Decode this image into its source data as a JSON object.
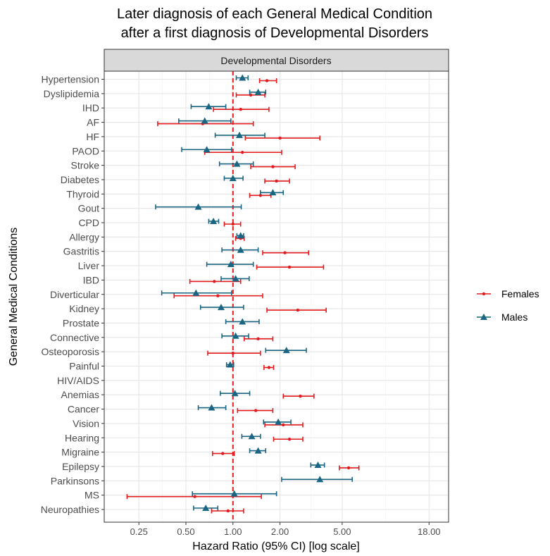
{
  "chart_data": {
    "type": "forest",
    "title": [
      "Later diagnosis of each General Medical Condition",
      "after a first diagnosis of Developmental Disorders"
    ],
    "panel_title": "Developmental Disorders",
    "xlabel": "Hazard Ratio (95% CI) [log scale]",
    "ylabel": "General Medical Conditions",
    "x_scale": "log",
    "xlim": [
      0.15,
      24
    ],
    "x_ticks": [
      0.25,
      0.5,
      1,
      2,
      5,
      18
    ],
    "x_tick_labels": [
      "0.25",
      "0.50",
      "1.00",
      "2.00",
      "5.00",
      "18.00"
    ],
    "reference_line": 1,
    "categories": [
      "Hypertension",
      "Dyslipidemia",
      "IHD",
      "AF",
      "HF",
      "PAOD",
      "Stroke",
      "Diabetes",
      "Thyroid",
      "Gout",
      "CPD",
      "Allergy",
      "Gastritis",
      "Liver",
      "IBD",
      "Diverticular",
      "Kidney",
      "Prostate",
      "Connective",
      "Osteoporosis",
      "Painful",
      "HIV/AIDS",
      "Anemias",
      "Cancer",
      "Vision",
      "Hearing",
      "Migraine",
      "Epilepsy",
      "Parkinsons",
      "MS",
      "Neuropathies"
    ],
    "legend": {
      "position": "right"
    },
    "grid": true,
    "series": [
      {
        "name": "Females",
        "color": "#e41a1c",
        "marker": "circle",
        "points": [
          {
            "hr": 1.65,
            "lo": 1.48,
            "hi": 1.9
          },
          {
            "hr": 1.3,
            "lo": 1.05,
            "hi": 1.6
          },
          {
            "hr": 1.12,
            "lo": 0.75,
            "hi": 1.7
          },
          {
            "hr": 0.64,
            "lo": 0.33,
            "hi": 1.35
          },
          {
            "hr": 2.0,
            "lo": 1.2,
            "hi": 3.6
          },
          {
            "hr": 1.15,
            "lo": 0.66,
            "hi": 2.05
          },
          {
            "hr": 1.8,
            "lo": 1.3,
            "hi": 2.5
          },
          {
            "hr": 1.9,
            "lo": 1.6,
            "hi": 2.3
          },
          {
            "hr": 1.5,
            "lo": 1.28,
            "hi": 1.75
          },
          {
            "hr": null,
            "lo": null,
            "hi": null
          },
          {
            "hr": 1.0,
            "lo": 0.88,
            "hi": 1.12
          },
          {
            "hr": 1.12,
            "lo": 1.04,
            "hi": 1.18
          },
          {
            "hr": 2.15,
            "lo": 1.55,
            "hi": 3.05
          },
          {
            "hr": 2.3,
            "lo": 1.42,
            "hi": 3.8
          },
          {
            "hr": 0.76,
            "lo": 0.53,
            "hi": 1.12
          },
          {
            "hr": 0.8,
            "lo": 0.42,
            "hi": 1.55
          },
          {
            "hr": 2.6,
            "lo": 1.65,
            "hi": 3.95
          },
          {
            "hr": null,
            "lo": null,
            "hi": null
          },
          {
            "hr": 1.45,
            "lo": 1.18,
            "hi": 1.8
          },
          {
            "hr": 1.0,
            "lo": 0.69,
            "hi": 1.5
          },
          {
            "hr": 1.7,
            "lo": 1.58,
            "hi": 1.82
          },
          {
            "hr": null,
            "lo": null,
            "hi": null
          },
          {
            "hr": 2.7,
            "lo": 2.1,
            "hi": 3.3
          },
          {
            "hr": 1.4,
            "lo": 1.07,
            "hi": 1.8
          },
          {
            "hr": 2.1,
            "lo": 1.6,
            "hi": 2.8
          },
          {
            "hr": 2.3,
            "lo": 1.82,
            "hi": 2.8
          },
          {
            "hr": 0.86,
            "lo": 0.74,
            "hi": 1.02
          },
          {
            "hr": 5.5,
            "lo": 4.8,
            "hi": 6.4
          },
          {
            "hr": null,
            "lo": null,
            "hi": null
          },
          {
            "hr": 0.57,
            "lo": 0.21,
            "hi": 1.52
          },
          {
            "hr": 0.93,
            "lo": 0.73,
            "hi": 1.17
          }
        ]
      },
      {
        "name": "Males",
        "color": "#1a6582",
        "marker": "triangle",
        "points": [
          {
            "hr": 1.15,
            "lo": 1.05,
            "hi": 1.25
          },
          {
            "hr": 1.45,
            "lo": 1.28,
            "hi": 1.62
          },
          {
            "hr": 0.7,
            "lo": 0.54,
            "hi": 0.9
          },
          {
            "hr": 0.66,
            "lo": 0.45,
            "hi": 0.97
          },
          {
            "hr": 1.1,
            "lo": 0.77,
            "hi": 1.6
          },
          {
            "hr": 0.68,
            "lo": 0.47,
            "hi": 0.98
          },
          {
            "hr": 1.06,
            "lo": 0.82,
            "hi": 1.35
          },
          {
            "hr": 1.0,
            "lo": 0.88,
            "hi": 1.16
          },
          {
            "hr": 1.8,
            "lo": 1.5,
            "hi": 2.1
          },
          {
            "hr": 0.6,
            "lo": 0.32,
            "hi": 1.13
          },
          {
            "hr": 0.75,
            "lo": 0.7,
            "hi": 0.81
          },
          {
            "hr": 1.12,
            "lo": 1.06,
            "hi": 1.17
          },
          {
            "hr": 1.12,
            "lo": 0.85,
            "hi": 1.45
          },
          {
            "hr": 0.97,
            "lo": 0.68,
            "hi": 1.35
          },
          {
            "hr": 1.04,
            "lo": 0.84,
            "hi": 1.27
          },
          {
            "hr": 0.58,
            "lo": 0.35,
            "hi": 0.98
          },
          {
            "hr": 0.84,
            "lo": 0.62,
            "hi": 1.17
          },
          {
            "hr": 1.15,
            "lo": 0.9,
            "hi": 1.47
          },
          {
            "hr": 1.04,
            "lo": 0.85,
            "hi": 1.26
          },
          {
            "hr": 2.2,
            "lo": 1.62,
            "hi": 2.95
          },
          {
            "hr": 0.96,
            "lo": 0.91,
            "hi": 1.01
          },
          {
            "hr": null,
            "lo": null,
            "hi": null
          },
          {
            "hr": 1.03,
            "lo": 0.83,
            "hi": 1.28
          },
          {
            "hr": 0.73,
            "lo": 0.6,
            "hi": 0.9
          },
          {
            "hr": 1.95,
            "lo": 1.57,
            "hi": 2.35
          },
          {
            "hr": 1.32,
            "lo": 1.14,
            "hi": 1.5
          },
          {
            "hr": 1.45,
            "lo": 1.28,
            "hi": 1.62
          },
          {
            "hr": 3.5,
            "lo": 3.15,
            "hi": 3.85
          },
          {
            "hr": 3.6,
            "lo": 2.05,
            "hi": 5.8
          },
          {
            "hr": 1.02,
            "lo": 0.55,
            "hi": 1.9
          },
          {
            "hr": 0.67,
            "lo": 0.56,
            "hi": 0.8
          }
        ]
      }
    ]
  }
}
